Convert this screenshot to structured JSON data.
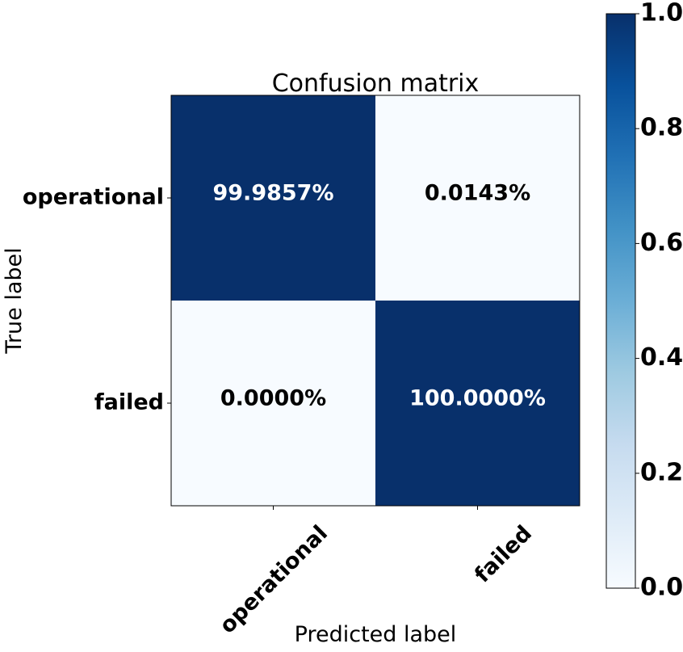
{
  "chart_data": {
    "type": "heatmap",
    "title": "Confusion matrix",
    "xlabel": "Predicted label",
    "ylabel": "True label",
    "x_categories": [
      "operational",
      "failed"
    ],
    "y_categories": [
      "operational",
      "failed"
    ],
    "values": [
      [
        0.999857,
        0.000143
      ],
      [
        0.0,
        1.0
      ]
    ],
    "cell_labels": [
      [
        "99.9857%",
        "0.0143%"
      ],
      [
        "0.0000%",
        "100.0000%"
      ]
    ],
    "colorbar": {
      "range": [
        0.0,
        1.0
      ],
      "ticks": [
        "0.0",
        "0.2",
        "0.4",
        "0.6",
        "0.8",
        "1.0"
      ],
      "colormap": "Blues",
      "low_color": "#f7fbff",
      "high_color": "#08306b"
    },
    "x_tick_rotation_deg": 45,
    "grid": false
  }
}
